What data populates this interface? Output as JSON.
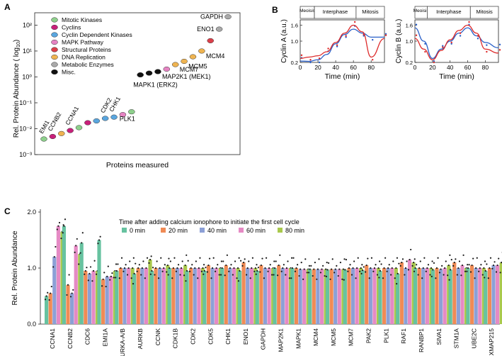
{
  "panels": {
    "a": "A",
    "b": "B",
    "c": "C"
  },
  "panel_a": {
    "legend": [
      {
        "label": "Mitotic Kinases",
        "color": "#8ed08c"
      },
      {
        "label": "Cyclins",
        "color": "#c8207a"
      },
      {
        "label": "Cyclin Dependent Kinases",
        "color": "#5aa6df"
      },
      {
        "label": "MAPK Pathway",
        "color": "#e583c2"
      },
      {
        "label": "Structural Proteins",
        "color": "#dc3f4a"
      },
      {
        "label": "DNA Replication",
        "color": "#efb451"
      },
      {
        "label": "Metabolic Enzymes",
        "color": "#a9a9a9"
      },
      {
        "label": "Misc.",
        "color": "#111111"
      }
    ],
    "ylabel_main": "Rel. Protein Abundance  ( log",
    "ylabel_sub": "10",
    "ylabel_end": ")",
    "xlabel": "Proteins measured",
    "yticks": [
      "10²",
      "10¹",
      "10⁰",
      "10⁻¹",
      "10⁻²",
      "10⁻³"
    ],
    "labels": [
      "GAPDH",
      "ENO1",
      "MCM4",
      "MCM5",
      "MCM7",
      "MAP2K1 (MEK1)",
      "MAPK1 (ERK2)",
      "PLK1",
      "CDK2",
      "CHK1",
      "EMI1",
      "CCNB2",
      "CCNA1"
    ]
  },
  "chart_data": [
    {
      "type": "scatter",
      "title": "",
      "xlabel": "Proteins measured",
      "ylabel": "Rel. Protein Abundance (log10)",
      "y_scale": "log",
      "ylim": [
        0.001,
        300
      ],
      "legend_position": "top-left",
      "points": [
        {
          "label": "EMI1",
          "group": "Mitotic Kinases",
          "y": 0.004
        },
        {
          "label": "CCNB2",
          "group": "Cyclins",
          "y": 0.005
        },
        {
          "label": "",
          "group": "DNA Replication",
          "y": 0.0065
        },
        {
          "label": "CCNA1",
          "group": "Cyclins",
          "y": 0.0085
        },
        {
          "label": "",
          "group": "Mitotic Kinases",
          "y": 0.011
        },
        {
          "label": "",
          "group": "Cyclins",
          "y": 0.017
        },
        {
          "label": "",
          "group": "Cyclin Dependent Kinases",
          "y": 0.02
        },
        {
          "label": "CDK2",
          "group": "Cyclin Dependent Kinases",
          "y": 0.025
        },
        {
          "label": "CHK1",
          "group": "Cyclin Dependent Kinases",
          "y": 0.028
        },
        {
          "label": "",
          "group": "MAPK Pathway",
          "y": 0.035
        },
        {
          "label": "PLK1",
          "group": "Mitotic Kinases",
          "y": 0.045
        },
        {
          "label": "MAPK1 (ERK2)",
          "group": "Misc.",
          "y": 1.2
        },
        {
          "label": "",
          "group": "Misc.",
          "y": 1.4
        },
        {
          "label": "MAP2K1 (MEK1)",
          "group": "Misc.",
          "y": 1.6
        },
        {
          "label": "",
          "group": "MAPK Pathway",
          "y": 2.0
        },
        {
          "label": "MCM7",
          "group": "DNA Replication",
          "y": 3.0
        },
        {
          "label": "MCM5",
          "group": "DNA Replication",
          "y": 4.0
        },
        {
          "label": "",
          "group": "DNA Replication",
          "y": 6.0
        },
        {
          "label": "MCM4",
          "group": "DNA Replication",
          "y": 10
        },
        {
          "label": "",
          "group": "Structural Proteins",
          "y": 25
        },
        {
          "label": "ENO1",
          "group": "Metabolic Enzymes",
          "y": 70
        },
        {
          "label": "GAPDH",
          "group": "Metabolic Enzymes",
          "y": 210
        }
      ]
    },
    {
      "type": "line",
      "title": "",
      "xlabel": "Time (min)",
      "ylabel": "Cyclin A (a.u.)",
      "xlim": [
        0,
        95
      ],
      "ylim": [
        0.2,
        1.8
      ],
      "xticks": [
        "0",
        "20",
        "40",
        "60",
        "80"
      ],
      "yticks": [
        "1.6",
        "1.0",
        "0.2"
      ],
      "phases": [
        {
          "label": "Meoisis II",
          "from": 0,
          "to": 16
        },
        {
          "label": "Interphase",
          "from": 16,
          "to": 63
        },
        {
          "label": "Mitosis",
          "from": 63,
          "to": 95
        }
      ],
      "series": [
        {
          "color": "#2a60c8",
          "x": [
            0,
            10,
            20,
            30,
            40,
            50,
            60,
            70,
            80,
            95
          ],
          "y": [
            0.25,
            0.24,
            0.3,
            0.5,
            0.9,
            1.25,
            1.45,
            1.3,
            1.15,
            1.15
          ]
        },
        {
          "color": "#dd2a2a",
          "x": [
            0,
            10,
            20,
            30,
            40,
            50,
            60,
            70,
            80,
            95
          ],
          "y": [
            0.35,
            0.4,
            0.45,
            0.6,
            0.95,
            1.3,
            1.6,
            1.35,
            0.4,
            1.1
          ]
        }
      ]
    },
    {
      "type": "line",
      "title": "",
      "xlabel": "Time (min)",
      "ylabel": "Cyclin B (a.u.)",
      "xlim": [
        0,
        95
      ],
      "ylim": [
        0.2,
        1.8
      ],
      "xticks": [
        "0",
        "20",
        "40",
        "60",
        "80"
      ],
      "yticks": [
        "1.6",
        "1.0",
        "0.2"
      ],
      "phases": [
        {
          "label": "Meoisis II",
          "from": 0,
          "to": 14
        },
        {
          "label": "Interphase",
          "from": 14,
          "to": 63
        },
        {
          "label": "Mitosis",
          "from": 63,
          "to": 95
        }
      ],
      "series": [
        {
          "color": "#2a60c8",
          "x": [
            0,
            10,
            20,
            30,
            40,
            50,
            60,
            70,
            80,
            95
          ],
          "y": [
            1.5,
            1.0,
            0.35,
            0.7,
            1.0,
            1.3,
            1.5,
            1.2,
            0.95,
            0.75
          ]
        },
        {
          "color": "#dd2a2a",
          "x": [
            0,
            10,
            20,
            30,
            40,
            50,
            60,
            70,
            80,
            95
          ],
          "y": [
            1.1,
            0.7,
            0.3,
            0.65,
            1.05,
            1.4,
            1.6,
            1.3,
            0.7,
            0.55
          ]
        }
      ]
    },
    {
      "type": "bar",
      "title": "Time after adding calcium ionophore to initiate the first cell cycle",
      "xlabel": "",
      "ylabel": "Rel. Protein Abundance",
      "ylim": [
        0,
        2.0
      ],
      "yticks": [
        "2.0",
        "1.0",
        "0.0"
      ],
      "categories": [
        "CCNA1",
        "CCNB2",
        "CDC6",
        "EMI1A",
        "AURKA-A/B",
        "AURKB",
        "CCNK",
        "CDK1B",
        "CDK2",
        "CDK5",
        "CHK1",
        "ENO1",
        "GAPDH",
        "MAP2K1",
        "MAPK1",
        "MCM4",
        "MCM5",
        "MCM7",
        "PAK2",
        "PLK1",
        "RAF1",
        "RANBP1",
        "SIVA1",
        "STM1A",
        "UBE2C",
        "XMAP215"
      ],
      "series": [
        {
          "name": "0 min",
          "color": "#67c2a0",
          "values": [
            0.5,
            1.75,
            1.45,
            1.5,
            0.95,
            0.9,
            0.95,
            1.0,
            0.95,
            0.95,
            1.0,
            0.95,
            0.95,
            1.0,
            1.0,
            0.98,
            0.97,
            0.97,
            0.96,
            0.95,
            0.9,
            1.0,
            0.97,
            0.97,
            1.0,
            0.95
          ]
        },
        {
          "name": "20 min",
          "color": "#f08b55",
          "values": [
            0.55,
            0.7,
            0.95,
            0.8,
            1.0,
            1.0,
            1.0,
            1.0,
            1.0,
            1.05,
            1.05,
            1.1,
            1.05,
            1.05,
            1.0,
            0.98,
            0.98,
            1.0,
            1.05,
            1.0,
            1.1,
            1.0,
            1.0,
            1.1,
            1.05,
            1.0
          ]
        },
        {
          "name": "40 min",
          "color": "#8ca0d6",
          "values": [
            1.2,
            0.55,
            0.9,
            0.85,
            1.0,
            1.0,
            1.0,
            1.0,
            1.0,
            1.0,
            1.0,
            1.0,
            1.0,
            1.0,
            0.98,
            0.98,
            0.98,
            1.0,
            1.0,
            1.0,
            1.0,
            1.0,
            0.98,
            1.0,
            1.0,
            1.05
          ]
        },
        {
          "name": "60 min",
          "color": "#e58ac4",
          "values": [
            1.75,
            1.4,
            0.95,
            0.85,
            1.0,
            1.0,
            1.0,
            1.0,
            1.0,
            1.0,
            1.0,
            1.0,
            1.0,
            1.0,
            0.98,
            0.98,
            0.98,
            1.0,
            1.0,
            1.0,
            1.15,
            1.0,
            1.0,
            1.05,
            1.0,
            1.05
          ]
        },
        {
          "name": "80 min",
          "color": "#a9c94c",
          "values": [
            1.65,
            1.25,
            0.95,
            0.95,
            1.0,
            1.15,
            1.05,
            1.05,
            1.0,
            1.0,
            1.0,
            1.0,
            1.0,
            1.0,
            0.98,
            0.98,
            0.98,
            1.0,
            1.0,
            1.0,
            1.1,
            1.0,
            1.05,
            1.0,
            1.0,
            1.1
          ]
        }
      ]
    }
  ]
}
